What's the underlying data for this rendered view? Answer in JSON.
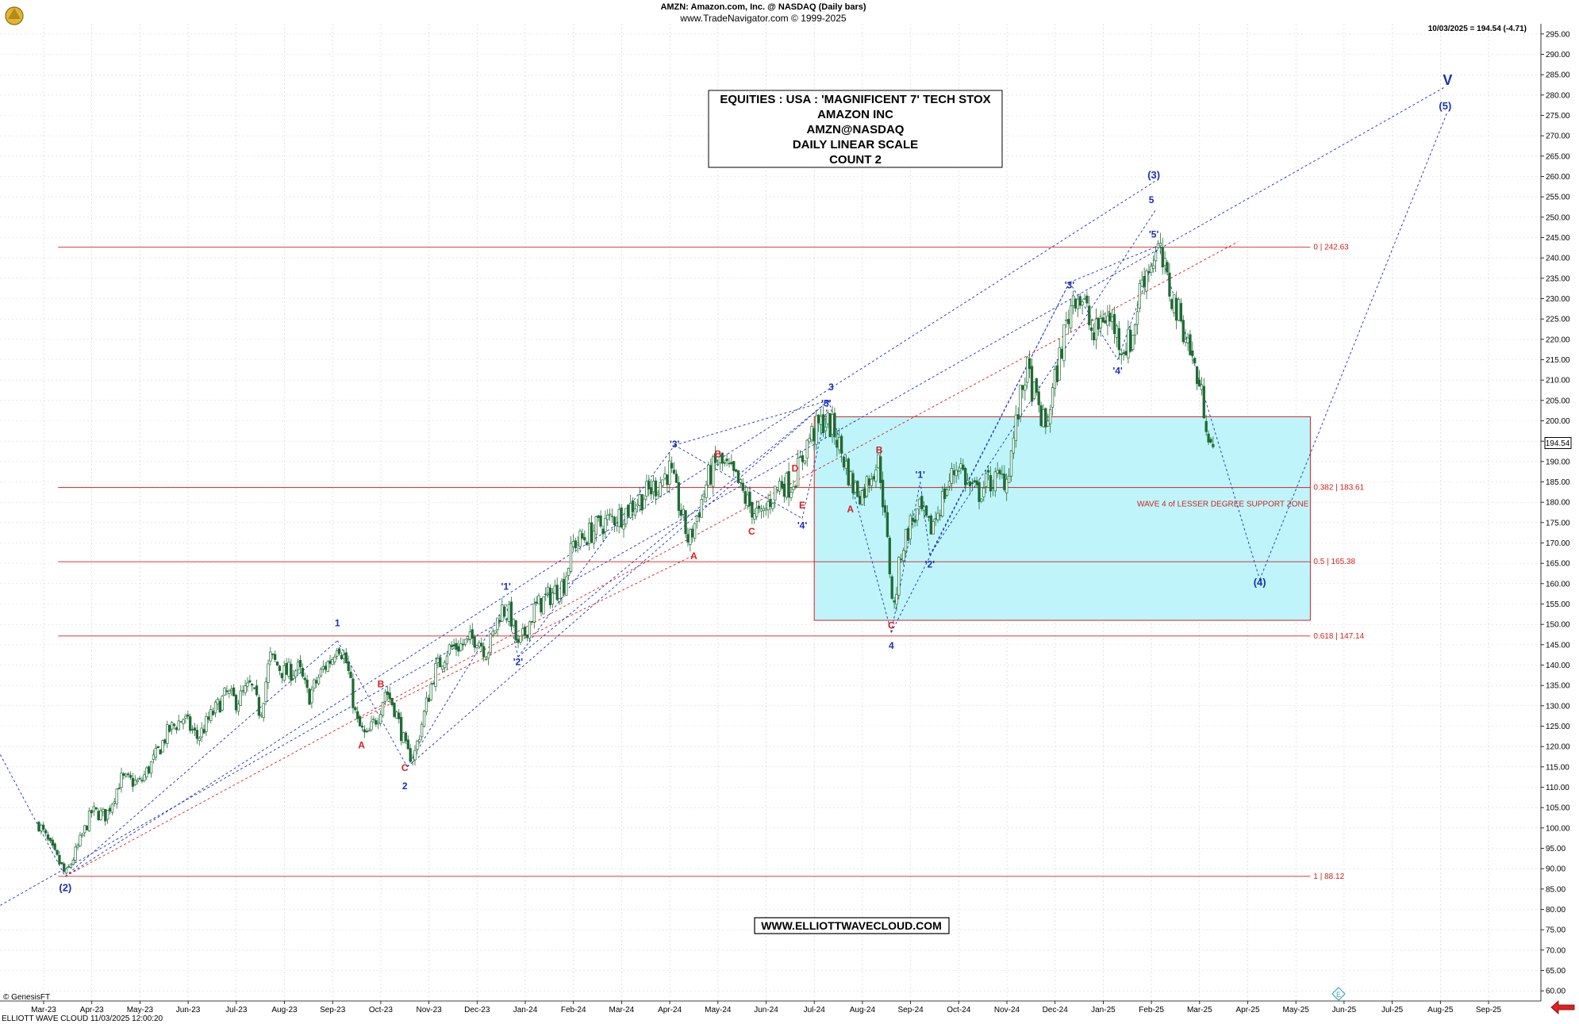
{
  "header": {
    "title": "AMZN:  Amazon.com, Inc. @ NASDAQ  (Daily bars)",
    "subtitle": "www.TradeNavigator.com © 1999-2025",
    "last_price_readout": "10/03/2025 = 194.54 (-4.71)",
    "last_price_tag": "194.54"
  },
  "info_box": {
    "lines": [
      "EQUITIES : USA : 'MAGNIFICENT 7' TECH STOX",
      "AMAZON INC",
      "AMZN@NASDAQ",
      "DAILY LINEAR SCALE",
      "COUNT 2"
    ]
  },
  "website_label": "WWW.ELLIOTTWAVECLOUD.COM",
  "footer": {
    "source": "© GenesisFT",
    "bottom_left": "ELLIOTT WAVE CLOUD    11/03/2025 12:00:20"
  },
  "colors": {
    "candle": "#1f6b34",
    "fib_line": "#d32020",
    "wave_blue": "#1a2fb5",
    "wave_red": "#d32020",
    "zone_fill": "#bff5fa",
    "zone_border": "#d32020"
  },
  "chart_data": {
    "type": "candlestick",
    "y_axis": {
      "min": 57.5,
      "max": 297.5,
      "ticks": [
        60,
        65,
        70,
        75,
        80,
        85,
        90,
        95,
        100,
        105,
        110,
        115,
        120,
        125,
        130,
        135,
        140,
        145,
        150,
        155,
        160,
        165,
        170,
        175,
        180,
        185,
        190,
        195,
        200,
        205,
        210,
        215,
        220,
        225,
        230,
        235,
        240,
        245,
        250,
        255,
        260,
        265,
        270,
        275,
        280,
        285,
        290,
        295
      ],
      "tick_labels": [
        "60.00",
        "65.00",
        "70.00",
        "75.00",
        "80.00",
        "85.00",
        "90.00",
        "95.00",
        "100.00",
        "105.00",
        "110.00",
        "115.00",
        "120.00",
        "125.00",
        "130.00",
        "135.00",
        "140.00",
        "145.00",
        "150.00",
        "155.00",
        "160.00",
        "165.00",
        "170.00",
        "175.00",
        "180.00",
        "185.00",
        "190.00",
        "195.00",
        "200.00",
        "205.00",
        "210.00",
        "215.00",
        "220.00",
        "225.00",
        "230.00",
        "235.00",
        "240.00",
        "245.00",
        "250.00",
        "255.00",
        "260.00",
        "265.00",
        "270.00",
        "275.00",
        "280.00",
        "285.00",
        "290.00",
        "295.00"
      ],
      "position": "right"
    },
    "x_axis": {
      "labels": [
        "Mar-23",
        "Apr-23",
        "May-23",
        "Jun-23",
        "Jul-23",
        "Aug-23",
        "Sep-23",
        "Oct-23",
        "Nov-23",
        "Dec-23",
        "Jan-24",
        "Feb-24",
        "Mar-24",
        "Apr-24",
        "May-24",
        "Jun-24",
        "Jul-24",
        "Aug-24",
        "Sep-24",
        "Oct-24",
        "Nov-24",
        "Dec-24",
        "Jan-25",
        "Feb-25",
        "Mar-25",
        "Apr-25",
        "May-25",
        "Jun-25",
        "Jul-25",
        "Aug-25",
        "Sep-25"
      ],
      "label_months": [
        0,
        1,
        2,
        3,
        4,
        5,
        6,
        7,
        8,
        9,
        10,
        11,
        12,
        13,
        14,
        15,
        16,
        17,
        18,
        19,
        20,
        21,
        22,
        23,
        24,
        25,
        26,
        27,
        28,
        29,
        30
      ]
    },
    "grid": true,
    "price_path": [
      [
        -0.1,
        101
      ],
      [
        0.2,
        94
      ],
      [
        0.4,
        90
      ],
      [
        0.45,
        88.1
      ],
      [
        0.7,
        95
      ],
      [
        1.0,
        104
      ],
      [
        1.3,
        103
      ],
      [
        1.6,
        112
      ],
      [
        2.0,
        111
      ],
      [
        2.3,
        117
      ],
      [
        2.6,
        124
      ],
      [
        2.9,
        127
      ],
      [
        3.2,
        122
      ],
      [
        3.5,
        128
      ],
      [
        3.8,
        133
      ],
      [
        4.0,
        131
      ],
      [
        4.3,
        135
      ],
      [
        4.5,
        128
      ],
      [
        4.7,
        142
      ],
      [
        5.0,
        138
      ],
      [
        5.3,
        139
      ],
      [
        5.5,
        132
      ],
      [
        5.8,
        139
      ],
      [
        6.0,
        142
      ],
      [
        6.1,
        146
      ],
      [
        6.3,
        140
      ],
      [
        6.5,
        126
      ],
      [
        6.7,
        122
      ],
      [
        6.95,
        128
      ],
      [
        7.1,
        134
      ],
      [
        7.3,
        129
      ],
      [
        7.55,
        118
      ],
      [
        7.7,
        118
      ],
      [
        7.9,
        128
      ],
      [
        8.1,
        138
      ],
      [
        8.4,
        144
      ],
      [
        8.7,
        145
      ],
      [
        9.0,
        147
      ],
      [
        9.2,
        143
      ],
      [
        9.35,
        148
      ],
      [
        9.5,
        154
      ],
      [
        9.7,
        152
      ],
      [
        9.85,
        144
      ],
      [
        10.0,
        148
      ],
      [
        10.2,
        154
      ],
      [
        10.4,
        156
      ],
      [
        10.6,
        158
      ],
      [
        10.8,
        160
      ],
      [
        11.0,
        170
      ],
      [
        11.2,
        171
      ],
      [
        11.5,
        174
      ],
      [
        11.8,
        176
      ],
      [
        12.0,
        177
      ],
      [
        12.3,
        180
      ],
      [
        12.5,
        182
      ],
      [
        12.8,
        185
      ],
      [
        13.0,
        188
      ],
      [
        13.2,
        179
      ],
      [
        13.4,
        170
      ],
      [
        13.6,
        178
      ],
      [
        13.8,
        186
      ],
      [
        14.0,
        190
      ],
      [
        14.2,
        188
      ],
      [
        14.4,
        185
      ],
      [
        14.6,
        180
      ],
      [
        14.9,
        176
      ],
      [
        15.1,
        181
      ],
      [
        15.3,
        185
      ],
      [
        15.5,
        184
      ],
      [
        15.7,
        189
      ],
      [
        15.9,
        196
      ],
      [
        16.2,
        200
      ],
      [
        16.4,
        198
      ],
      [
        16.6,
        191
      ],
      [
        16.8,
        184
      ],
      [
        17.0,
        182
      ],
      [
        17.2,
        188
      ],
      [
        17.35,
        190
      ],
      [
        17.5,
        172
      ],
      [
        17.65,
        153
      ],
      [
        17.8,
        168
      ],
      [
        18.0,
        175
      ],
      [
        18.2,
        178
      ],
      [
        18.4,
        173
      ],
      [
        18.6,
        179
      ],
      [
        18.8,
        185
      ],
      [
        19.0,
        190
      ],
      [
        19.2,
        184
      ],
      [
        19.4,
        182
      ],
      [
        19.6,
        185
      ],
      [
        20.0,
        186
      ],
      [
        20.2,
        200
      ],
      [
        20.4,
        213
      ],
      [
        20.6,
        205
      ],
      [
        20.8,
        198
      ],
      [
        21.0,
        210
      ],
      [
        21.2,
        222
      ],
      [
        21.4,
        232
      ],
      [
        21.6,
        229
      ],
      [
        21.8,
        220
      ],
      [
        22.0,
        226
      ],
      [
        22.2,
        224
      ],
      [
        22.4,
        218
      ],
      [
        22.6,
        220
      ],
      [
        22.8,
        235
      ],
      [
        23.0,
        239
      ],
      [
        23.15,
        242
      ],
      [
        23.3,
        235
      ],
      [
        23.5,
        228
      ],
      [
        23.7,
        222
      ],
      [
        23.9,
        213
      ],
      [
        24.1,
        203
      ],
      [
        24.3,
        190
      ]
    ],
    "fib_levels": [
      {
        "value": 242.63,
        "label": "0 | 242.63",
        "from_month": 0.3,
        "to_month": 26.3
      },
      {
        "value": 183.61,
        "label": "0.382 | 183.61",
        "from_month": 0.3,
        "to_month": 26.3
      },
      {
        "value": 165.38,
        "label": "0.5 | 165.38",
        "from_month": 0.3,
        "to_month": 26.3
      },
      {
        "value": 147.14,
        "label": "0.618 | 147.14",
        "from_month": 0.3,
        "to_month": 26.3
      },
      {
        "value": 88.12,
        "label": "1 | 88.12",
        "from_month": 0.3,
        "to_month": 26.3
      }
    ],
    "support_zone": {
      "label": "WAVE 4 of LESSER DEGREE SUPPORT ZONE",
      "x_from": 16.0,
      "x_to": 26.3,
      "y_from": 151,
      "y_to": 201
    },
    "wave_labels": [
      {
        "text": "(2)",
        "x": 0.45,
        "y": 84.5,
        "color": "blue",
        "size": 13
      },
      {
        "text": "1",
        "x": 6.1,
        "y": 149.5,
        "color": "blue",
        "size": 12
      },
      {
        "text": "A",
        "x": 6.6,
        "y": 119.5,
        "color": "red",
        "size": 12
      },
      {
        "text": "B",
        "x": 7.0,
        "y": 134.5,
        "color": "red",
        "size": 12
      },
      {
        "text": "C",
        "x": 7.5,
        "y": 114,
        "color": "red",
        "size": 12
      },
      {
        "text": "2",
        "x": 7.5,
        "y": 109.5,
        "color": "blue",
        "size": 12
      },
      {
        "text": "'1'",
        "x": 9.6,
        "y": 158.5,
        "color": "blue",
        "size": 12
      },
      {
        "text": "'2'",
        "x": 9.85,
        "y": 140,
        "color": "blue",
        "size": 12
      },
      {
        "text": "'3'",
        "x": 13.1,
        "y": 193.5,
        "color": "blue",
        "size": 12
      },
      {
        "text": "A",
        "x": 13.5,
        "y": 166,
        "color": "red",
        "size": 12
      },
      {
        "text": "B",
        "x": 14.0,
        "y": 191,
        "color": "red",
        "size": 12
      },
      {
        "text": "C",
        "x": 14.7,
        "y": 172,
        "color": "red",
        "size": 12
      },
      {
        "text": "D",
        "x": 15.6,
        "y": 187.5,
        "color": "red",
        "size": 12
      },
      {
        "text": "E",
        "x": 15.75,
        "y": 178.5,
        "color": "red",
        "size": 12
      },
      {
        "text": "'4'",
        "x": 15.75,
        "y": 173.5,
        "color": "blue",
        "size": 12
      },
      {
        "text": "3",
        "x": 16.35,
        "y": 207.5,
        "color": "blue",
        "size": 12
      },
      {
        "text": "'5'",
        "x": 16.25,
        "y": 203.5,
        "color": "blue",
        "size": 12
      },
      {
        "text": "A",
        "x": 16.75,
        "y": 177.5,
        "color": "red",
        "size": 12
      },
      {
        "text": "B",
        "x": 17.35,
        "y": 192,
        "color": "red",
        "size": 12
      },
      {
        "text": "C",
        "x": 17.6,
        "y": 149,
        "color": "red",
        "size": 12
      },
      {
        "text": "4",
        "x": 17.6,
        "y": 144,
        "color": "blue",
        "size": 12
      },
      {
        "text": "'1'",
        "x": 18.2,
        "y": 186,
        "color": "blue",
        "size": 12
      },
      {
        "text": "'2'",
        "x": 18.4,
        "y": 164,
        "color": "blue",
        "size": 12
      },
      {
        "text": "'3'",
        "x": 21.3,
        "y": 232.5,
        "color": "blue",
        "size": 12
      },
      {
        "text": "'4'",
        "x": 22.3,
        "y": 211.5,
        "color": "blue",
        "size": 12
      },
      {
        "text": "'5'",
        "x": 23.05,
        "y": 245,
        "color": "blue",
        "size": 12
      },
      {
        "text": "5",
        "x": 23.0,
        "y": 253.5,
        "color": "blue",
        "size": 12
      },
      {
        "text": "(3)",
        "x": 23.05,
        "y": 259.5,
        "color": "blue",
        "size": 13
      },
      {
        "text": "(4)",
        "x": 25.25,
        "y": 159.5,
        "color": "blue",
        "size": 13
      },
      {
        "text": "(5)",
        "x": 29.1,
        "y": 276.5,
        "color": "blue",
        "size": 13
      },
      {
        "text": "V",
        "x": 29.15,
        "y": 282.5,
        "color": "blue",
        "size": 18
      }
    ]
  }
}
